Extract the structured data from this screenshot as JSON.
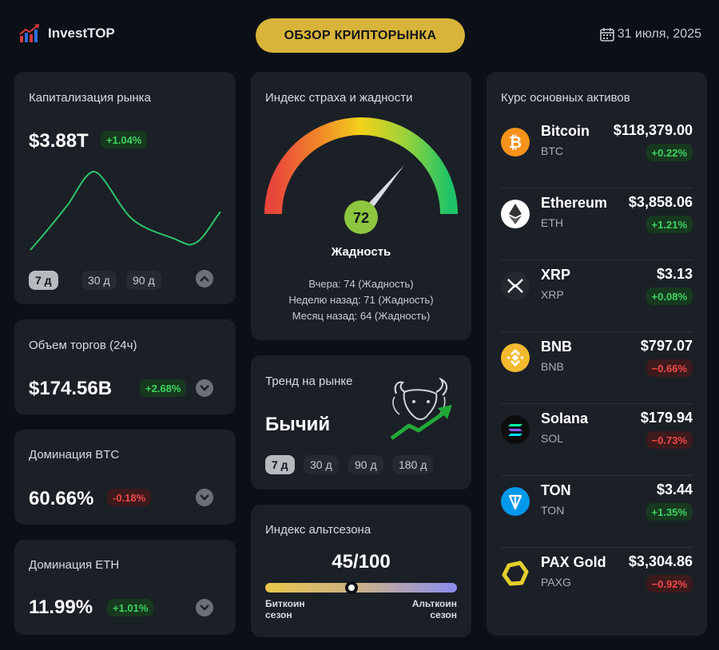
{
  "header": {
    "brand": "InvestTOP",
    "title": "ОБЗОР КРИПТОРЫНКА",
    "date": "31 июля, 2025"
  },
  "market_cap": {
    "label": "Капитализация рынка",
    "value": "$3.88T",
    "change": "+1.04%",
    "periods": [
      "7 д",
      "30 д",
      "90 д"
    ],
    "active_period": "7 д",
    "line_color": "#2ec46a"
  },
  "volume": {
    "label": "Объем торгов (24ч)",
    "value": "$174.56B",
    "change": "+2.68%"
  },
  "btc_dominance": {
    "label": "Доминация BTC",
    "value": "60.66%",
    "change": "-0.18%"
  },
  "eth_dominance": {
    "label": "Доминация ETH",
    "value": "11.99%",
    "change": "+1.01%"
  },
  "fear_greed": {
    "label": "Индекс страха и жадности",
    "value": "72",
    "level": 72,
    "status": "Жадность",
    "yesterday": "Вчера: 74 (Жадность)",
    "week_ago": "Неделю назад: 71 (Жадность)",
    "month_ago": "Месяц назад: 64 (Жадность)"
  },
  "trend": {
    "label": "Тренд на рынке",
    "value": "Бычий",
    "periods": [
      "7 д",
      "30 д",
      "90 д",
      "180 д"
    ],
    "active_period": "7 д",
    "icon": "bull-icon"
  },
  "altseason": {
    "label": "Индекс альтсезона",
    "value": "45/100",
    "level": 45,
    "left_label_1": "Биткоин",
    "left_label_2": "сезон",
    "right_label_1": "Альткоин",
    "right_label_2": "сезон"
  },
  "assets": {
    "label": "Курс основных активов",
    "items": [
      {
        "name": "Bitcoin",
        "symbol": "BTC",
        "price": "$118,379.00",
        "change": "+0.22%",
        "dir": "up",
        "icon": "bitcoin-icon",
        "color": "#f7931a"
      },
      {
        "name": "Ethereum",
        "symbol": "ETH",
        "price": "$3,858.06",
        "change": "+1.21%",
        "dir": "up",
        "icon": "ethereum-icon",
        "color": "#ffffff"
      },
      {
        "name": "XRP",
        "symbol": "XRP",
        "price": "$3.13",
        "change": "+0.08%",
        "dir": "up",
        "icon": "xrp-icon",
        "color": "#23292f"
      },
      {
        "name": "BNB",
        "symbol": "BNB",
        "price": "$797.07",
        "change": "−0.66%",
        "dir": "down",
        "icon": "bnb-icon",
        "color": "#f3ba2f"
      },
      {
        "name": "Solana",
        "symbol": "SOL",
        "price": "$179.94",
        "change": "−0.73%",
        "dir": "down",
        "icon": "solana-icon",
        "color": "#0d0d0d"
      },
      {
        "name": "TON",
        "symbol": "TON",
        "price": "$3.44",
        "change": "+1.35%",
        "dir": "up",
        "icon": "ton-icon",
        "color": "#0098ea"
      },
      {
        "name": "PAX Gold",
        "symbol": "PAXG",
        "price": "$3,304.86",
        "change": "−0.92%",
        "dir": "down",
        "icon": "paxgold-icon",
        "color": "#e4ce2d"
      }
    ]
  }
}
